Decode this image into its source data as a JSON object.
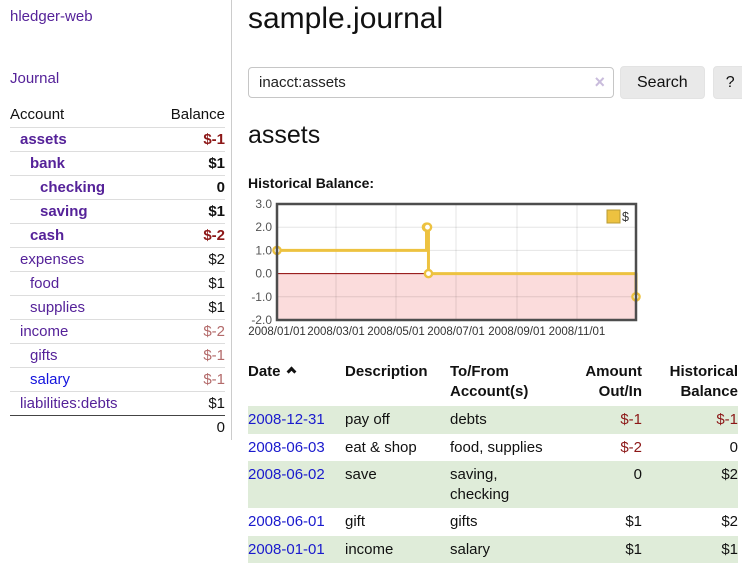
{
  "sidebar": {
    "brand": "hledger-web",
    "journal_link": "Journal",
    "accounts_table": {
      "headers": {
        "account": "Account",
        "balance": "Balance"
      },
      "rows": [
        {
          "account": "assets",
          "balance": "$-1",
          "level": 0,
          "bold": true,
          "neg": "strong"
        },
        {
          "account": "bank",
          "balance": "$1",
          "level": 1,
          "bold": true,
          "neg": "none"
        },
        {
          "account": "checking",
          "balance": "0",
          "level": 2,
          "bold": true,
          "neg": "none"
        },
        {
          "account": "saving",
          "balance": "$1",
          "level": 2,
          "bold": true,
          "neg": "none"
        },
        {
          "account": "cash",
          "balance": "$-2",
          "level": 1,
          "bold": true,
          "neg": "strong"
        },
        {
          "account": "expenses",
          "balance": "$2",
          "level": 0,
          "bold": false,
          "neg": "none"
        },
        {
          "account": "food",
          "balance": "$1",
          "level": 1,
          "bold": false,
          "neg": "none"
        },
        {
          "account": "supplies",
          "balance": "$1",
          "level": 1,
          "bold": false,
          "neg": "none"
        },
        {
          "account": "income",
          "balance": "$-2",
          "level": 0,
          "bold": false,
          "neg": "soft"
        },
        {
          "account": "gifts",
          "balance": "$-1",
          "level": 1,
          "bold": false,
          "neg": "soft"
        },
        {
          "account": "salary",
          "balance": "$-1",
          "level": 1,
          "bold": false,
          "neg": "soft",
          "link_color": "blue"
        },
        {
          "account": "liabilities:debts",
          "balance": "$1",
          "level": 0,
          "bold": false,
          "neg": "none"
        }
      ],
      "total": "0"
    }
  },
  "header": {
    "title": "sample.journal"
  },
  "search": {
    "value": "inacct:assets",
    "clear_icon": "×",
    "button_label": "Search",
    "help_label": "?"
  },
  "section": {
    "account_heading": "assets",
    "chart_label": "Historical Balance:"
  },
  "chart_data": {
    "type": "line",
    "title": "Historical Balance:",
    "style": "steps",
    "color": "#edc240",
    "legend": [
      {
        "label": "$",
        "color": "#edc240"
      }
    ],
    "legend_position": "top-right",
    "grid": true,
    "ylim": [
      -2,
      3
    ],
    "y_ticks": [
      3.0,
      2.0,
      1.0,
      0.0,
      -1.0,
      -2.0
    ],
    "x_total_days": 365,
    "x_ticks": [
      {
        "label": "2008/01/01",
        "day": 0
      },
      {
        "label": "2008/03/01",
        "day": 60
      },
      {
        "label": "2008/05/01",
        "day": 121
      },
      {
        "label": "2008/07/01",
        "day": 182
      },
      {
        "label": "2008/09/01",
        "day": 244
      },
      {
        "label": "2008/11/01",
        "day": 305
      }
    ],
    "series": [
      {
        "name": "$",
        "points": [
          {
            "date": "2008-01-01",
            "day": 0,
            "value": 1
          },
          {
            "date": "2008-06-01",
            "day": 152,
            "value": 2
          },
          {
            "date": "2008-06-02",
            "day": 153,
            "value": 2
          },
          {
            "date": "2008-06-03",
            "day": 154,
            "value": 0
          },
          {
            "date": "2008-12-31",
            "day": 365,
            "value": -1
          }
        ]
      }
    ],
    "negative_region_fill": "#fbdcdc",
    "zero_line_color": "#8b0000"
  },
  "transactions": {
    "headers": [
      {
        "lines": [
          "Date"
        ],
        "sorted": "asc"
      },
      {
        "lines": [
          "Description"
        ]
      },
      {
        "lines": [
          "To/From",
          "Account(s)"
        ]
      },
      {
        "lines": [
          "Amount",
          "Out/In"
        ],
        "align": "right"
      },
      {
        "lines": [
          "Historical",
          "Balance"
        ],
        "align": "right"
      }
    ],
    "rows": [
      {
        "date": "2008-12-31",
        "description": "pay off",
        "accounts": "debts",
        "amount": "$-1",
        "balance": "$-1",
        "amount_neg": true,
        "balance_neg": true,
        "shaded": true
      },
      {
        "date": "2008-06-03",
        "description": "eat & shop",
        "accounts": "food, supplies",
        "amount": "$-2",
        "balance": "0",
        "amount_neg": true,
        "balance_neg": false,
        "shaded": false
      },
      {
        "date": "2008-06-02",
        "description": "save",
        "accounts": "saving, checking",
        "amount": "0",
        "balance": "$2",
        "amount_neg": false,
        "balance_neg": false,
        "shaded": true
      },
      {
        "date": "2008-06-01",
        "description": "gift",
        "accounts": "gifts",
        "amount": "$1",
        "balance": "$2",
        "amount_neg": false,
        "balance_neg": false,
        "shaded": false
      },
      {
        "date": "2008-01-01",
        "description": "income",
        "accounts": "salary",
        "amount": "$1",
        "balance": "$1",
        "amount_neg": false,
        "balance_neg": false,
        "shaded": true
      }
    ]
  }
}
